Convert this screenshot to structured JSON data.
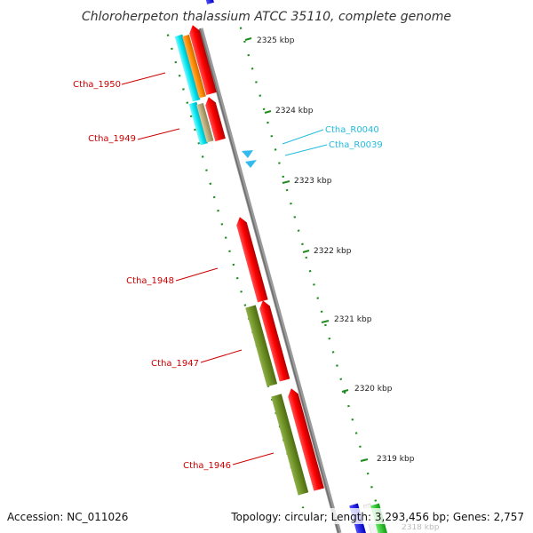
{
  "title": "Chloroherpeton thalassium ATCC 35110, complete genome",
  "footer": {
    "accession": "Accession: NC_011026",
    "topology": "Topology: circular; Length: 3,293,456 bp; Genes: 2,757"
  },
  "ruler": {
    "labels": [
      "2325 kbp",
      "2324 kbp",
      "2323 kbp",
      "2322 kbp",
      "2321 kbp",
      "2320 kbp",
      "2319 kbp",
      "2318 kbp"
    ]
  },
  "genes": [
    {
      "label": "Ctha_1950",
      "color": "#d40000"
    },
    {
      "label": "Ctha_1949",
      "color": "#d40000"
    },
    {
      "label": "Ctha_1948",
      "color": "#d40000"
    },
    {
      "label": "Ctha_1947",
      "color": "#d40000"
    },
    {
      "label": "Ctha_1946",
      "color": "#d40000"
    }
  ],
  "rnas": [
    {
      "label": "Ctha_R0040",
      "color": "#22bbdd"
    },
    {
      "label": "Ctha_R0039",
      "color": "#22bbdd"
    }
  ],
  "colors": {
    "cds_forward": "#ff1a1a",
    "cds_reverse_olive": "#6b8e23",
    "cds_cyan": "#00e5ee",
    "cds_orange": "#ff8c00",
    "cds_tan": "#b8a878",
    "trna": "#33bbee",
    "backbone": "#8a8a8a",
    "ticks": "#228b22"
  }
}
